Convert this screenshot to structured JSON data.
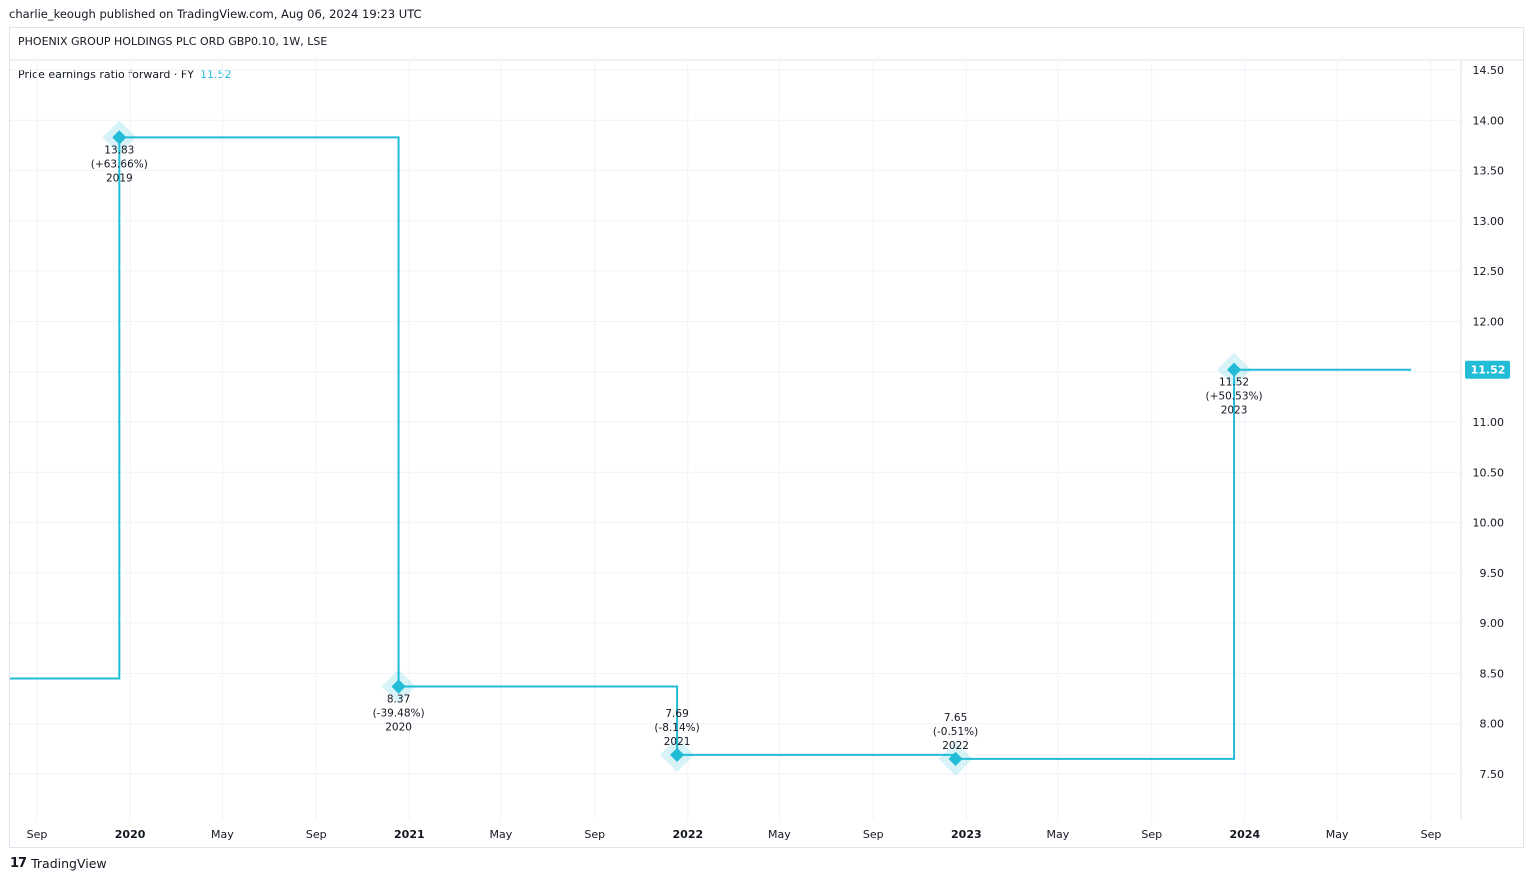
{
  "header": {
    "published": "charlie_keough published on TradingView.com, Aug 06, 2024 19:23 UTC",
    "symbol": "PHOENIX GROUP HOLDINGS PLC ORD GBP0.10, 1W, LSE"
  },
  "legend": {
    "label": "Price earnings ratio forward · FY",
    "value": "11.52"
  },
  "footer": {
    "brand": "TradingView",
    "brand_mark": "17"
  },
  "colors": {
    "series": "#22bcd6",
    "grid": "#f0f3fa",
    "text": "#131722"
  },
  "chart_data": {
    "type": "line",
    "step": true,
    "series": [
      {
        "name": "Price earnings ratio forward · FY",
        "points": [
          {
            "x": "2019-08",
            "y": 8.45,
            "label": null
          },
          {
            "x": "2019-12-31",
            "y": 13.83,
            "value_label": "13.83",
            "change_label": "(+63.66%)",
            "period_label": "2019"
          },
          {
            "x": "2020-12-31",
            "y": 8.37,
            "value_label": "8.37",
            "change_label": "(-39.48%)",
            "period_label": "2020"
          },
          {
            "x": "2021-12-31",
            "y": 7.69,
            "value_label": "7.69",
            "change_label": "(-8.14%)",
            "period_label": "2021"
          },
          {
            "x": "2022-12-31",
            "y": 7.65,
            "value_label": "7.65",
            "change_label": "(-0.51%)",
            "period_label": "2022"
          },
          {
            "x": "2023-12-31",
            "y": 11.52,
            "value_label": "11.52",
            "change_label": "(+50.53%)",
            "period_label": "2023"
          },
          {
            "x": "2024-08-06",
            "y": 11.52,
            "label": null
          }
        ]
      }
    ],
    "y_ticks": [
      "14.50",
      "14.00",
      "13.50",
      "13.00",
      "12.50",
      "12.00",
      "11.50",
      "11.00",
      "10.50",
      "10.00",
      "9.50",
      "9.00",
      "8.50",
      "8.00",
      "7.50"
    ],
    "ylim": [
      7.0,
      14.5
    ],
    "x_ticks": [
      {
        "label": "Sep",
        "date": "2019-09-01",
        "bold": false
      },
      {
        "label": "2020",
        "date": "2020-01-01",
        "bold": true
      },
      {
        "label": "May",
        "date": "2020-05-01",
        "bold": false
      },
      {
        "label": "Sep",
        "date": "2020-09-01",
        "bold": false
      },
      {
        "label": "2021",
        "date": "2021-01-01",
        "bold": true
      },
      {
        "label": "May",
        "date": "2021-05-01",
        "bold": false
      },
      {
        "label": "Sep",
        "date": "2021-09-01",
        "bold": false
      },
      {
        "label": "2022",
        "date": "2022-01-01",
        "bold": true
      },
      {
        "label": "May",
        "date": "2022-05-01",
        "bold": false
      },
      {
        "label": "Sep",
        "date": "2022-09-01",
        "bold": false
      },
      {
        "label": "2023",
        "date": "2023-01-01",
        "bold": true
      },
      {
        "label": "May",
        "date": "2023-05-01",
        "bold": false
      },
      {
        "label": "Sep",
        "date": "2023-09-01",
        "bold": false
      },
      {
        "label": "2024",
        "date": "2024-01-01",
        "bold": true
      },
      {
        "label": "May",
        "date": "2024-05-01",
        "bold": false
      },
      {
        "label": "Sep",
        "date": "2024-09-01",
        "bold": false
      }
    ],
    "last_value_label": "11.52",
    "grid": true,
    "legend_position": "top-left"
  }
}
